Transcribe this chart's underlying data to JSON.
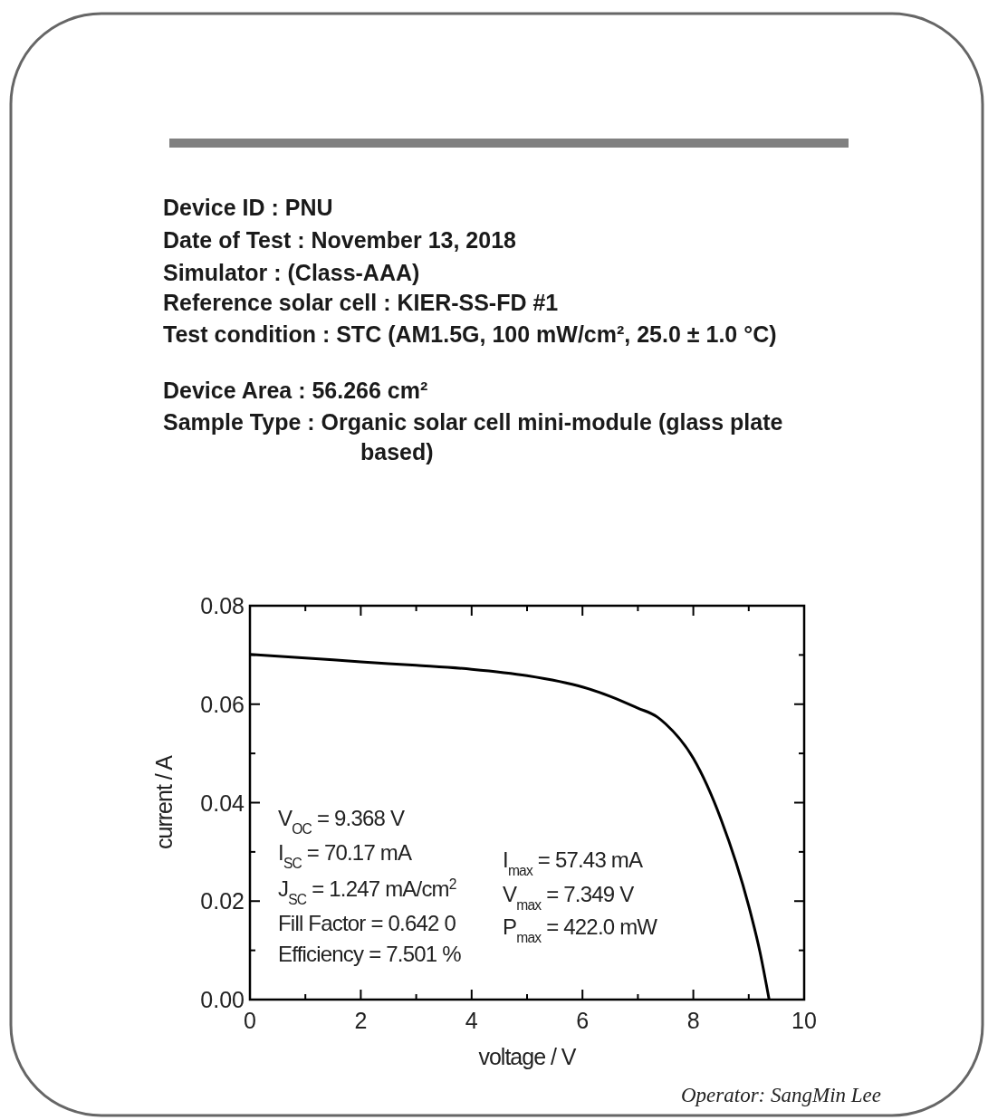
{
  "chart_data": {
    "type": "line",
    "xlabel": "voltage / V",
    "ylabel": "current / A",
    "x": [
      0,
      1,
      2,
      3,
      4,
      5,
      6,
      6.5,
      7,
      7.349,
      7.5,
      8,
      8.5,
      9,
      9.2,
      9.368
    ],
    "series": [
      {
        "color": "#000000",
        "values": [
          0.0701,
          0.0694,
          0.0686,
          0.0679,
          0.0671,
          0.0658,
          0.0635,
          0.0616,
          0.0592,
          0.0574,
          0.056,
          0.049,
          0.0366,
          0.019,
          0.0098,
          0
        ]
      }
    ],
    "xlim": [
      0,
      10
    ],
    "ylim": [
      0,
      0.08
    ],
    "xticks": [
      0,
      {
        "value": 1,
        "label": null
      },
      2,
      {
        "value": 3,
        "label": null
      },
      4,
      {
        "value": 5,
        "label": null
      },
      6,
      {
        "value": 7,
        "label": null
      },
      8,
      {
        "value": 9,
        "label": null
      },
      10
    ],
    "yticks": [
      "0.00",
      {
        "value": 0.01,
        "label": null
      },
      {
        "value": 0.02,
        "label": "0.02"
      },
      {
        "value": 0.03,
        "label": null
      },
      {
        "value": 0.04,
        "label": "0.04"
      },
      {
        "value": 0.05,
        "label": null
      },
      {
        "value": 0.06,
        "label": "0.06"
      },
      {
        "value": 0.07,
        "label": null
      },
      {
        "value": 0.08,
        "label": "0.08"
      }
    ],
    "grid": false,
    "marker": "none",
    "line_style": "solid",
    "annotations": [
      "Device ID : PNU",
      "Date of Test : November 13, 2018",
      "Simulator : (Class-AAA)",
      "Reference solar cell : KIER-SS-FD #1",
      "Test condition : STC (AM1.5G, 100 mW/cm², 25.0 ± 1.0 °C)",
      "Device Area : 56.266 cm²",
      "Sample Type : Organic solar cell mini-module (glass plate based)",
      "V$_{OC}$ = 9.368 V",
      "I$_{SC}$ = 70.17 mA",
      "J$_{SC}$ = 1.247 mA/cm$^{2}$",
      "Fill Factor = 0.642 0",
      "Efficiency = 7.501 %",
      "I$_{max}$ = 57.43 mA",
      "V$_{max}$ = 7.349 V",
      "P$_{max}$ = 422.0 mW",
      "Operator: SangMin Lee"
    ]
  }
}
